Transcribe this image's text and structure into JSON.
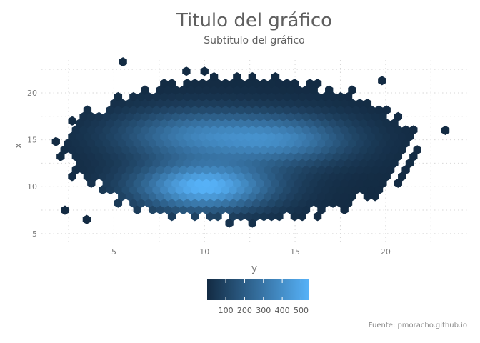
{
  "chart_data": {
    "type": "heatmap",
    "subtype": "hexbin",
    "title": "Titulo del gráfico",
    "subtitle": "Subtitulo del gráfico",
    "xlabel": "y",
    "ylabel": "x",
    "caption": "Fuente: pmoracho.github.io",
    "xlim": [
      1,
      24.5
    ],
    "ylim": [
      4,
      23.5
    ],
    "x_ticks": [
      5,
      10,
      15,
      20
    ],
    "y_ticks": [
      5,
      10,
      15,
      20
    ],
    "grid": true,
    "legend": {
      "position": "bottom",
      "ticks": [
        100,
        200,
        300,
        400,
        500
      ],
      "min": 1,
      "max": 540,
      "color_low": "#132B43",
      "color_high": "#56B1F7"
    },
    "clusters": [
      {
        "center": [
          10,
          10
        ],
        "spread": [
          2.6,
          1.7
        ],
        "peak": 540
      },
      {
        "center": [
          9.5,
          15.5
        ],
        "spread": [
          3.0,
          1.9
        ],
        "peak": 310
      },
      {
        "center": [
          14.5,
          15.0
        ],
        "spread": [
          2.6,
          1.8
        ],
        "peak": 300
      }
    ],
    "extent": {
      "center": [
        12,
        14
      ],
      "radius": [
        9.6,
        7.6
      ]
    },
    "outlier_bins": [
      [
        5.5,
        23.3
      ],
      [
        9.0,
        22.3
      ],
      [
        10.0,
        22.3
      ],
      [
        19.8,
        21.3
      ],
      [
        2.3,
        7.5
      ],
      [
        3.5,
        6.5
      ],
      [
        23.3,
        16.0
      ],
      [
        1.8,
        14.8
      ],
      [
        2.7,
        17.0
      ]
    ],
    "colors": {
      "background": "#ffffff",
      "grid": "#d7d7d7",
      "text": "#7a7a7a",
      "title": "#5f5f5f"
    }
  }
}
